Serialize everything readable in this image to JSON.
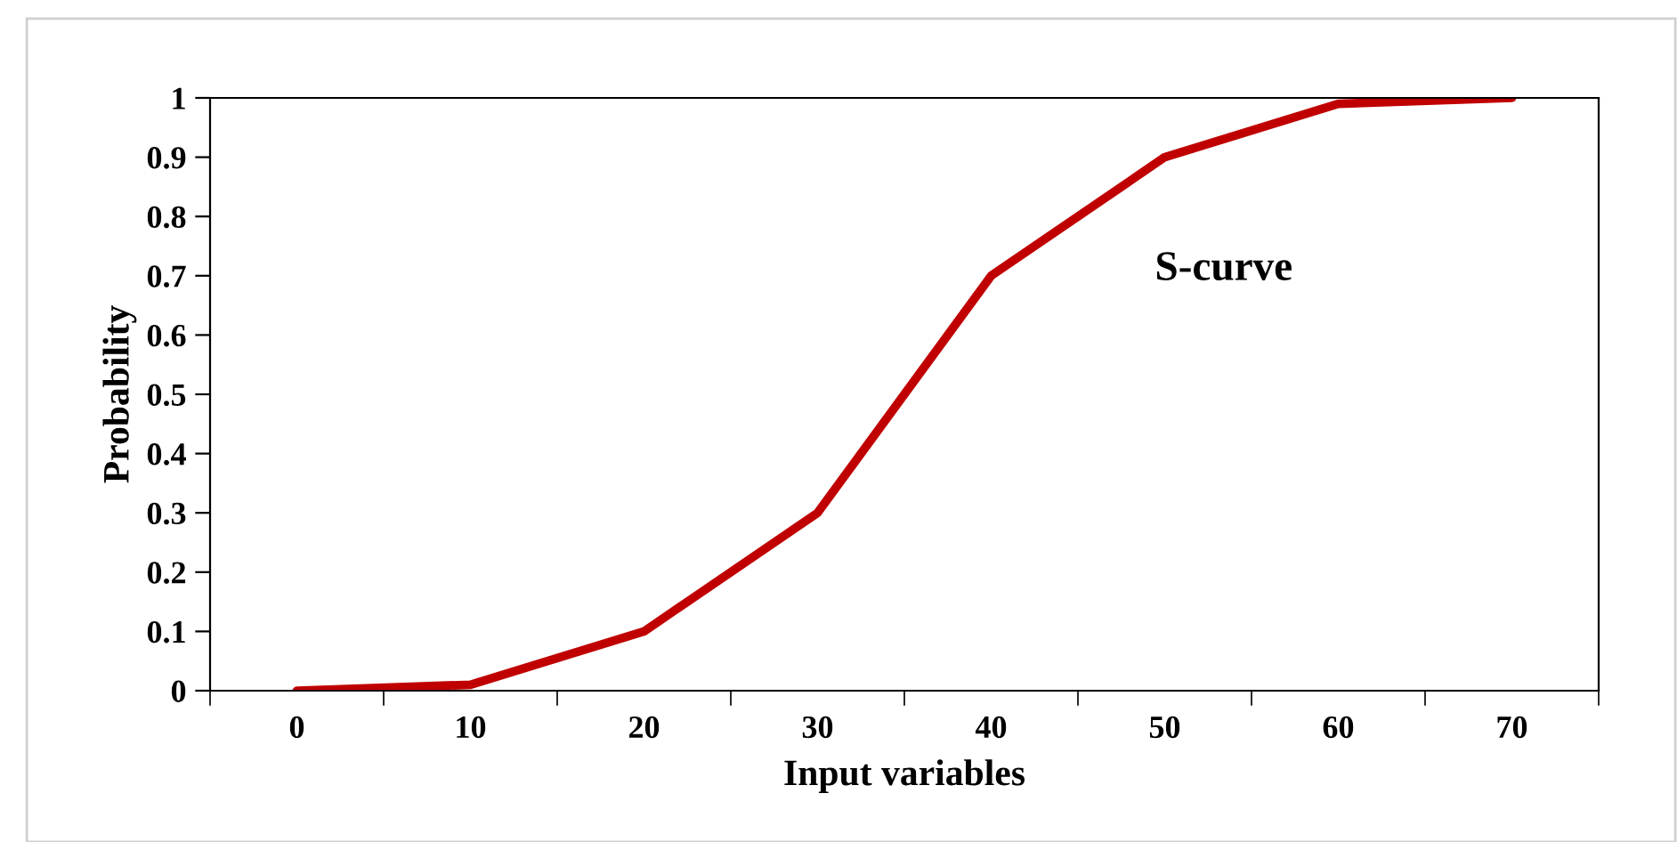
{
  "chart_data": {
    "type": "line",
    "xlabel": "Input variables",
    "ylabel": "Probability",
    "categories": [
      "0",
      "10",
      "20",
      "30",
      "40",
      "50",
      "60",
      "70"
    ],
    "series": [
      {
        "color": "#c00000",
        "values": [
          0,
          0.01,
          0.1,
          0.3,
          0.7,
          0.9,
          0.99,
          1.0
        ]
      }
    ],
    "ylim": [
      0,
      1
    ],
    "yticks": [
      0,
      {
        "value": 0.1,
        "label": "0.1"
      },
      {
        "value": 0.2,
        "label": "0.2"
      },
      {
        "value": 0.3,
        "label": "0.3"
      },
      {
        "value": 0.4,
        "label": "0.4"
      },
      {
        "value": 0.5,
        "label": "0.5"
      },
      {
        "value": 0.6,
        "label": "0.6"
      },
      {
        "value": 0.7,
        "label": "0.7"
      },
      {
        "value": 0.8,
        "label": "0.8"
      },
      {
        "value": 0.9,
        "label": "0.9"
      },
      1
    ],
    "annotations": [
      "S-curve"
    ],
    "grid": false,
    "legend": false,
    "marker": "none",
    "line_style": "solid"
  }
}
